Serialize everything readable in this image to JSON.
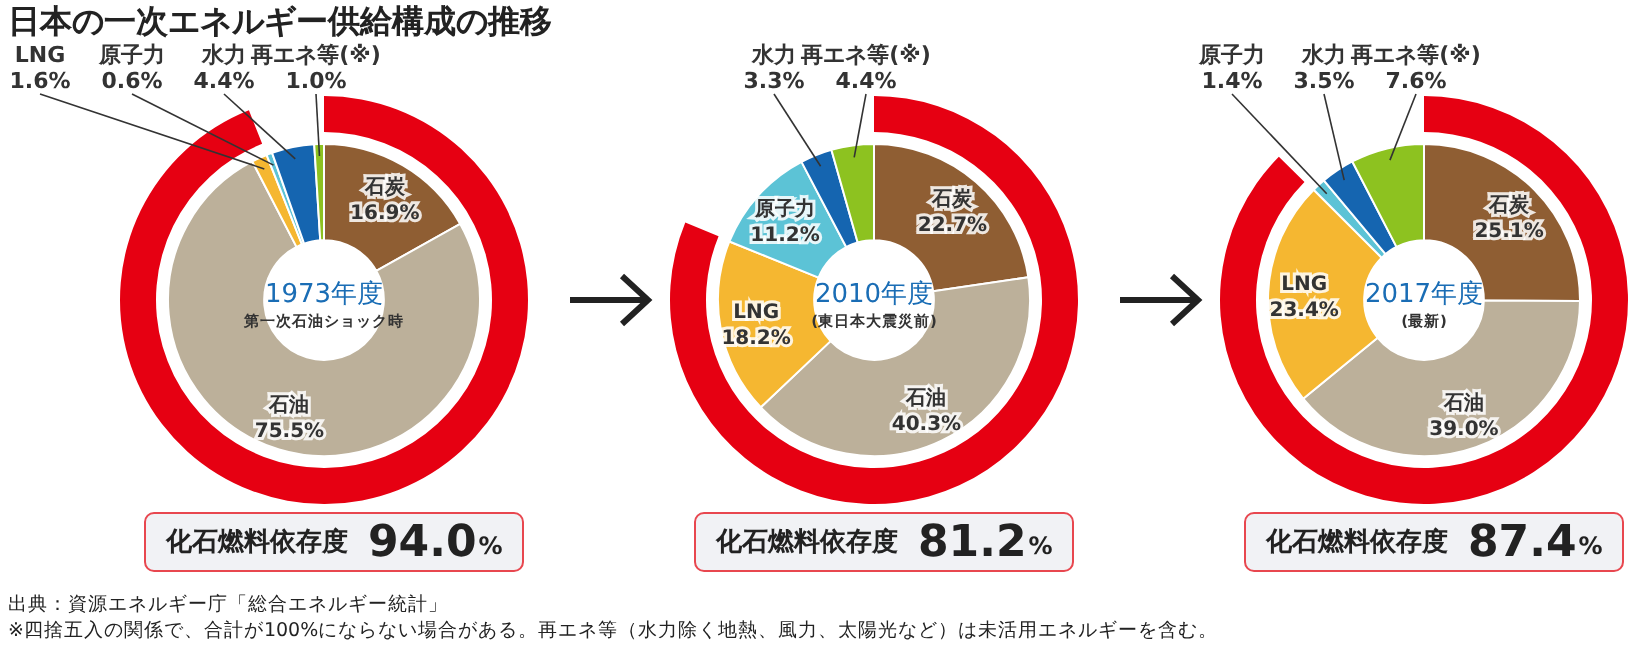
{
  "chart_data": [
    {
      "type": "donut",
      "title": "日本の一次エネルギー供給構成の推移",
      "categories": [
        "石炭",
        "石油",
        "LNG",
        "原子力",
        "水力",
        "再エネ等(※)"
      ],
      "series": [
        {
          "values": [
            16.9,
            75.5,
            1.6,
            0.6,
            4.4,
            1.0
          ],
          "value_labels": [
            "16.9%",
            "75.5%",
            "1.6%",
            "0.6%",
            "4.4%",
            "1.0%"
          ],
          "colors": [
            "#8f5e33",
            "#bcb09a",
            "#f5b731",
            "#5cc3d6",
            "#1565b0",
            "#8dc220"
          ]
        },
        {
          "name": "化石燃料依存度",
          "values": [
            94.0,
            null,
            null,
            null,
            null,
            null
          ],
          "value_labels": [
            "94.0%",
            null,
            null,
            null,
            null,
            null
          ],
          "color": "#e60012"
        }
      ],
      "annotations": [
        "1973年度",
        "第一次石油ショック時",
        "出典：資源エネルギー庁「総合エネルギー統計」",
        "※四捨五入の関係で、合計が100%にならない場合がある。再エネ等（水力除く地熱、風力、太陽光など）は未活用エネルギーを含む。"
      ],
      "legend": false
    },
    {
      "type": "donut",
      "categories": [
        "石炭",
        "石油",
        "LNG",
        "原子力",
        "水力",
        "再エネ等(※)"
      ],
      "series": [
        {
          "values": [
            22.7,
            40.3,
            18.2,
            11.2,
            3.3,
            4.4
          ],
          "value_labels": [
            "22.7%",
            "40.3%",
            "18.2%",
            "11.2%",
            "3.3%",
            "4.4%"
          ],
          "colors": [
            "#8f5e33",
            "#bcb09a",
            "#f5b731",
            "#5cc3d6",
            "#1565b0",
            "#8dc220"
          ]
        },
        {
          "name": "化石燃料依存度",
          "values": [
            81.2,
            null,
            null,
            null,
            null,
            null
          ],
          "value_labels": [
            "81.2%",
            null,
            null,
            null,
            null,
            null
          ],
          "color": "#e60012"
        }
      ],
      "annotations": [
        "2010年度",
        "(東日本大震災前)"
      ],
      "legend": false
    },
    {
      "type": "donut",
      "categories": [
        "石炭",
        "石油",
        "LNG",
        "原子力",
        "水力",
        "再エネ等(※)"
      ],
      "series": [
        {
          "values": [
            25.1,
            39.0,
            23.4,
            1.4,
            3.5,
            7.6
          ],
          "value_labels": [
            "25.1%",
            "39.0%",
            "23.4%",
            "1.4%",
            "3.5%",
            "7.6%"
          ],
          "colors": [
            "#8f5e33",
            "#bcb09a",
            "#f5b731",
            "#5cc3d6",
            "#1565b0",
            "#8dc220"
          ]
        },
        {
          "name": "化石燃料依存度",
          "values": [
            87.4,
            null,
            null,
            null,
            null,
            null
          ],
          "value_labels": [
            "87.4%",
            null,
            null,
            null,
            null,
            null
          ],
          "color": "#e60012"
        }
      ],
      "annotations": [
        "2017年度",
        "(最新)"
      ],
      "legend": false
    }
  ]
}
